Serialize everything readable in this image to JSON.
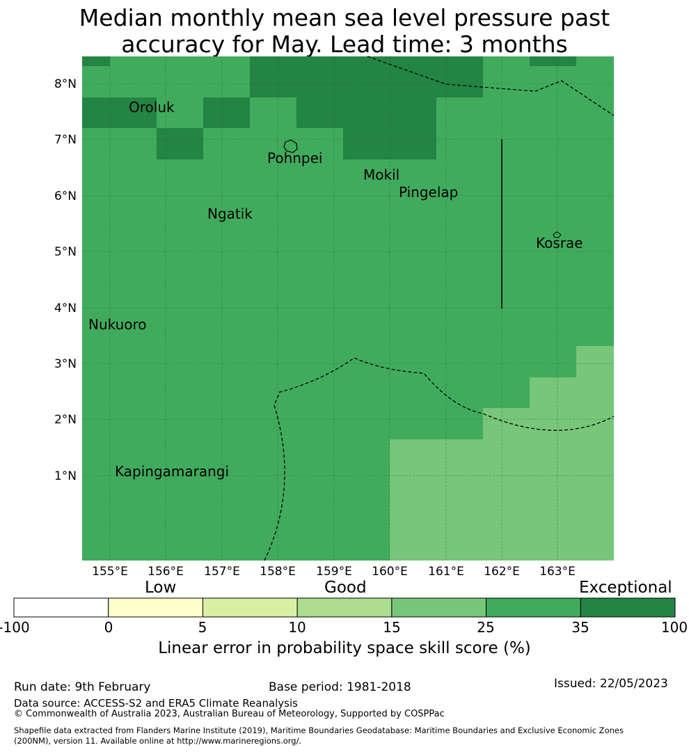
{
  "title_line1": "Median monthly mean sea level pressure past",
  "title_line2": "accuracy for May. Lead time: 3 months",
  "map": {
    "lon_labels": [
      "155°E",
      "156°E",
      "157°E",
      "158°E",
      "159°E",
      "160°E",
      "161°E",
      "162°E",
      "163°E"
    ],
    "lat_labels": [
      "8°N",
      "7°N",
      "6°N",
      "5°N",
      "4°N",
      "3°N",
      "2°N",
      "1°N"
    ],
    "places": [
      "Oroluk",
      "Pohnpei",
      "Mokil",
      "Pingelap",
      "Ngatik",
      "Kosrae",
      "Nukuoro",
      "Kapingamarangi"
    ]
  },
  "colorbar": {
    "categories": [
      "Low",
      "Good",
      "Exceptional"
    ],
    "ticks": [
      "-100",
      "0",
      "5",
      "10",
      "15",
      "25",
      "35",
      "100"
    ],
    "colors": [
      "#ffffff",
      "#ffffcc",
      "#d9f0a3",
      "#addd8e",
      "#78c679",
      "#41ab5d",
      "#238443"
    ],
    "label": "Linear error in probability space skill score (%)"
  },
  "footer": {
    "run_date": "Run date: 9th February",
    "base_period": "Base period: 1981-2018",
    "issued": "Issued: 22/05/2023",
    "data_source": "Data source: ACCESS-S2 and ERA5 Climate Reanalysis",
    "copyright": "© Commonwealth of Australia 2023, Australian Bureau of Meteorology, Supported by COSPPac",
    "shapefile1": "Shapefile data extracted from Flanders Marine Institute (2019), Maritime Boundaries Geodatabase: Maritime Boundaries and Exclusive Economic Zones",
    "shapefile2": "(200NM), version 11. Available online at http://www.marineregions.org/."
  }
}
